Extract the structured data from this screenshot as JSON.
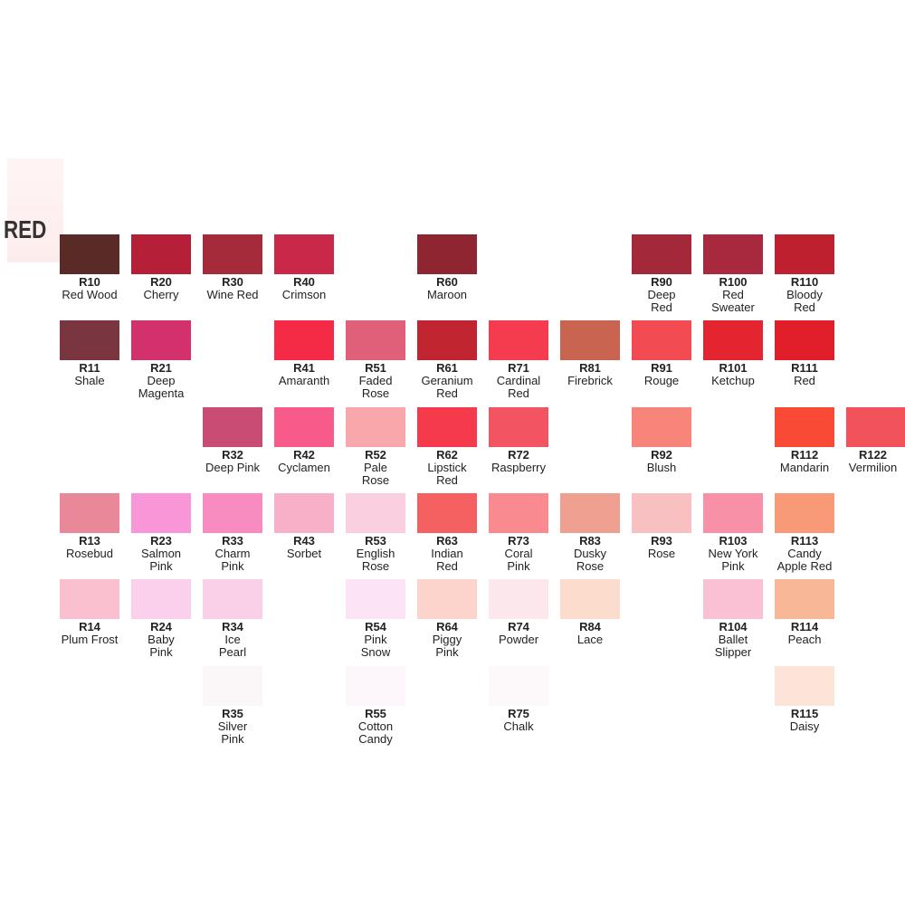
{
  "title": "RED",
  "rows": [
    [
      {
        "code": "R10",
        "name": [
          "Red Wood"
        ],
        "color": "#5a2a27"
      },
      {
        "code": "R20",
        "name": [
          "Cherry"
        ],
        "color": "#b52038"
      },
      {
        "code": "R30",
        "name": [
          "Wine Red"
        ],
        "color": "#a52a3a"
      },
      {
        "code": "R40",
        "name": [
          "Crimson"
        ],
        "color": "#c92848"
      },
      null,
      {
        "code": "R60",
        "name": [
          "Maroon"
        ],
        "color": "#8e2530"
      },
      null,
      null,
      {
        "code": "R90",
        "name": [
          "Deep",
          "Red"
        ],
        "color": "#a3283a"
      },
      {
        "code": "R100",
        "name": [
          "Red",
          "Sweater"
        ],
        "color": "#a8283e"
      },
      {
        "code": "R110",
        "name": [
          "Bloody",
          "Red"
        ],
        "color": "#bf2030"
      },
      null
    ],
    [
      {
        "code": "R11",
        "name": [
          "Shale"
        ],
        "color": "#7a3640"
      },
      {
        "code": "R21",
        "name": [
          "Deep",
          "Magenta"
        ],
        "color": "#d3306e"
      },
      null,
      {
        "code": "R41",
        "name": [
          "Amaranth"
        ],
        "color": "#f52a45"
      },
      {
        "code": "R51",
        "name": [
          "Faded",
          "Rose"
        ],
        "color": "#e0607a"
      },
      {
        "code": "R61",
        "name": [
          "Geranium",
          "Red"
        ],
        "color": "#c02530"
      },
      {
        "code": "R71",
        "name": [
          "Cardinal",
          "Red"
        ],
        "color": "#f53b4e"
      },
      {
        "code": "R81",
        "name": [
          "Firebrick"
        ],
        "color": "#c86450"
      },
      {
        "code": "R91",
        "name": [
          "Rouge"
        ],
        "color": "#f24c52"
      },
      {
        "code": "R101",
        "name": [
          "Ketchup"
        ],
        "color": "#e42530"
      },
      {
        "code": "R111",
        "name": [
          "Red"
        ],
        "color": "#e01f2a"
      },
      null
    ],
    [
      null,
      null,
      {
        "code": "R32",
        "name": [
          "Deep Pink"
        ],
        "color": "#c94c74"
      },
      {
        "code": "R42",
        "name": [
          "Cyclamen"
        ],
        "color": "#f85a8a"
      },
      {
        "code": "R52",
        "name": [
          "Pale",
          "Rose"
        ],
        "color": "#f8a8aa"
      },
      {
        "code": "R62",
        "name": [
          "Lipstick",
          "Red"
        ],
        "color": "#f53a4c"
      },
      {
        "code": "R72",
        "name": [
          "Raspberry"
        ],
        "color": "#f25462"
      },
      null,
      {
        "code": "R92",
        "name": [
          "Blush"
        ],
        "color": "#f8857a"
      },
      null,
      {
        "code": "R112",
        "name": [
          "Mandarin"
        ],
        "color": "#f84a35"
      },
      {
        "code": "R122",
        "name": [
          "Vermilion"
        ],
        "color": "#f2525a"
      }
    ],
    [
      {
        "code": "R13",
        "name": [
          "Rosebud"
        ],
        "color": "#e98898"
      },
      {
        "code": "R23",
        "name": [
          "Salmon",
          "Pink"
        ],
        "color": "#f896d8"
      },
      {
        "code": "R33",
        "name": [
          "Charm",
          "Pink"
        ],
        "color": "#f88cc0"
      },
      {
        "code": "R43",
        "name": [
          "Sorbet"
        ],
        "color": "#f8b0c8"
      },
      {
        "code": "R53",
        "name": [
          "English",
          "Rose"
        ],
        "color": "#fad0e0"
      },
      {
        "code": "R63",
        "name": [
          "Indian",
          "Red"
        ],
        "color": "#f56060"
      },
      {
        "code": "R73",
        "name": [
          "Coral",
          "Pink"
        ],
        "color": "#f88a90"
      },
      {
        "code": "R83",
        "name": [
          "Dusky",
          "Rose"
        ],
        "color": "#f0a090"
      },
      {
        "code": "R93",
        "name": [
          "Rose"
        ],
        "color": "#f8c0c0"
      },
      {
        "code": "R103",
        "name": [
          "New York",
          "Pink"
        ],
        "color": "#f890a8"
      },
      {
        "code": "R113",
        "name": [
          "Candy",
          "Apple Red"
        ],
        "color": "#f89a78"
      },
      null
    ],
    [
      {
        "code": "R14",
        "name": [
          "Plum Frost"
        ],
        "color": "#fac0d0"
      },
      {
        "code": "R24",
        "name": [
          "Baby",
          "Pink"
        ],
        "color": "#fad0ec"
      },
      {
        "code": "R34",
        "name": [
          "Ice",
          "Pearl"
        ],
        "color": "#fad0e8"
      },
      null,
      {
        "code": "R54",
        "name": [
          "Pink",
          "Snow"
        ],
        "color": "#fce4f4"
      },
      {
        "code": "R64",
        "name": [
          "Piggy",
          "Pink"
        ],
        "color": "#fcd4cc"
      },
      {
        "code": "R74",
        "name": [
          "Powder"
        ],
        "color": "#fce8ec"
      },
      {
        "code": "R84",
        "name": [
          "Lace"
        ],
        "color": "#fcdccc"
      },
      null,
      {
        "code": "R104",
        "name": [
          "Ballet",
          "Slipper"
        ],
        "color": "#fac0d4"
      },
      {
        "code": "R114",
        "name": [
          "Peach"
        ],
        "color": "#f8b898"
      },
      null
    ],
    [
      null,
      null,
      {
        "code": "R35",
        "name": [
          "Silver",
          "Pink"
        ],
        "color": "#fbf6f8"
      },
      null,
      {
        "code": "R55",
        "name": [
          "Cotton",
          "Candy"
        ],
        "color": "#fdf7fb"
      },
      null,
      {
        "code": "R75",
        "name": [
          "Chalk"
        ],
        "color": "#fdf8f9"
      },
      null,
      null,
      null,
      {
        "code": "R115",
        "name": [
          "Daisy"
        ],
        "color": "#fce4d8"
      },
      null
    ]
  ]
}
